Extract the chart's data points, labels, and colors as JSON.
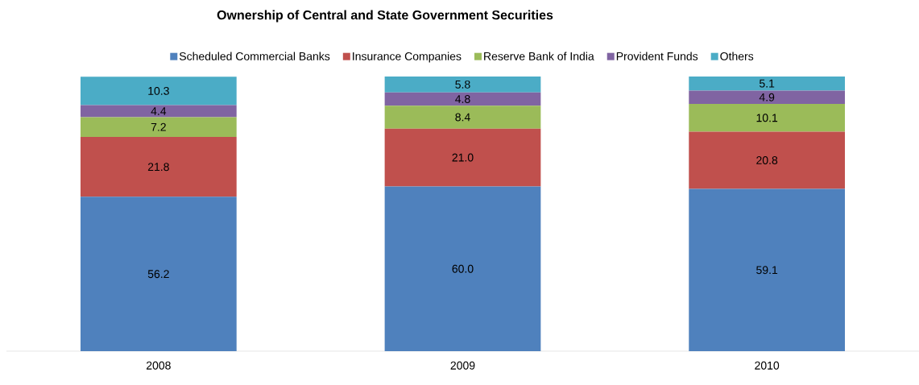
{
  "chart_data": {
    "type": "bar",
    "stacked": true,
    "title": "Ownership of Central and State Government Securities",
    "categories": [
      "2008",
      "2009",
      "2010"
    ],
    "series": [
      {
        "name": "Scheduled Commercial Banks",
        "color": "#4f81bd",
        "values": [
          56.2,
          60.0,
          59.1
        ],
        "value_labels": [
          "56.2",
          "60.0",
          "59.1"
        ]
      },
      {
        "name": "Insurance Companies",
        "color": "#c0504d",
        "values": [
          21.8,
          21.0,
          20.8
        ],
        "value_labels": [
          "21.8",
          "21.0",
          "20.8"
        ]
      },
      {
        "name": "Reserve Bank of India",
        "color": "#9bbb59",
        "values": [
          7.2,
          8.4,
          10.1
        ],
        "value_labels": [
          "7.2",
          "8.4",
          "10.1"
        ]
      },
      {
        "name": "Provident Funds",
        "color": "#8064a2",
        "values": [
          4.4,
          4.8,
          4.9
        ],
        "value_labels": [
          "4.4",
          "4.8",
          "4.9"
        ]
      },
      {
        "name": "Others",
        "color": "#4bacc6",
        "values": [
          10.3,
          5.8,
          5.1
        ],
        "value_labels": [
          "10.3",
          "5.8",
          "5.1"
        ]
      }
    ],
    "legend": "top"
  }
}
